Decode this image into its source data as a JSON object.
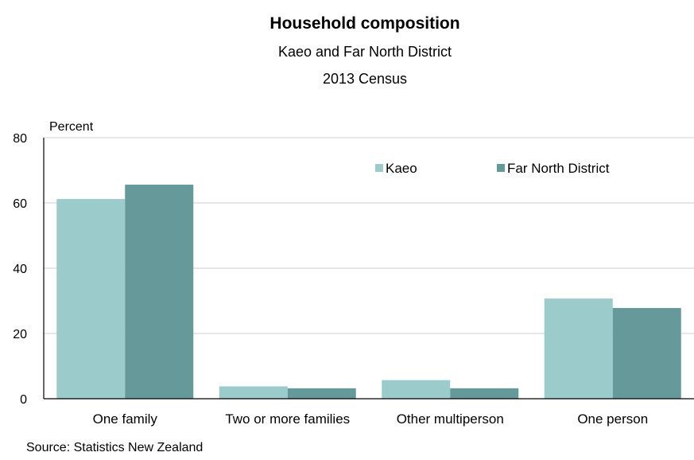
{
  "title": "Household composition",
  "subtitle_line1": "Kaeo and Far North District",
  "subtitle_line2": "2013 Census",
  "source": "Source: Statistics New Zealand",
  "chart_data": {
    "type": "bar",
    "title": "Household composition",
    "subtitle": [
      "Kaeo and Far North District",
      "2013 Census"
    ],
    "ylabel": "Percent",
    "xlabel": "",
    "ylim": [
      0,
      80
    ],
    "yticks": [
      0,
      20,
      40,
      60,
      80
    ],
    "grid": true,
    "legend_position": "top-right",
    "categories": [
      "One family",
      "Two or more families",
      "Other multiperson",
      "One person"
    ],
    "series": [
      {
        "name": "Kaeo",
        "color": "#9ccbcc",
        "values": [
          61.2,
          3.8,
          5.7,
          30.7
        ]
      },
      {
        "name": "Far North District",
        "color": "#669999",
        "values": [
          65.6,
          3.2,
          3.2,
          27.8
        ]
      }
    ]
  }
}
